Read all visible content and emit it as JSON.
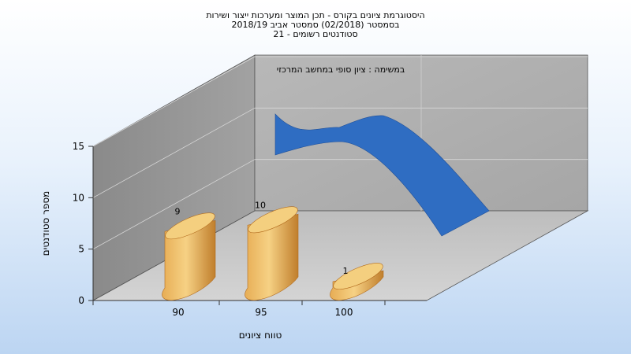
{
  "chart_data": {
    "type": "bar",
    "title_lines": [
      "היסטוגרמת ציונים בקורס - תכן המוצר ומערכות ייצור ושירות",
      "בסמסטר  (02/2018)  סמסטר אביב 2018/19",
      "סטודנטים רשומים - 21"
    ],
    "annotation": "במשימה : ציון סופי במחשב המרכזי",
    "xlabel": "טווח ציונים",
    "ylabel": "מספר סטודנטים",
    "categories": [
      "90",
      "95",
      "100"
    ],
    "values": [
      9,
      10,
      1
    ],
    "data_labels": [
      "9",
      "10",
      "1"
    ],
    "yticks": [
      "0",
      "5",
      "10",
      "15"
    ],
    "ylim": [
      0,
      15
    ],
    "curve_values": [
      16,
      17.5,
      20,
      17
    ],
    "grid": true,
    "colors": {
      "bar_light": "#f4cf7f",
      "bar_mid": "#e0a24a",
      "bar_dark": "#b26b1d",
      "curve": "#2f6dc2",
      "curve_dark": "#1f4f98",
      "back_wall": "#aeaeae",
      "left_wall": "#8f8f8f",
      "floor": "#c8c8c8"
    }
  }
}
